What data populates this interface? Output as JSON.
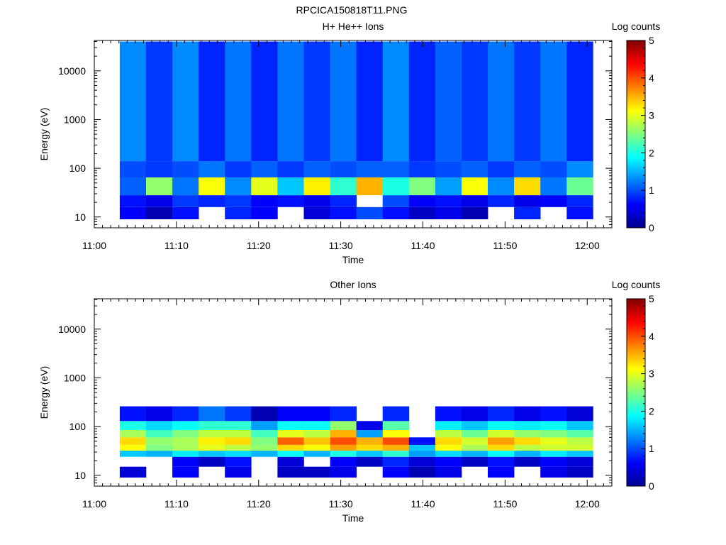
{
  "figure_title": "RPCICA150818T11.PNG",
  "colorscale": [
    "#00008f",
    "#0000ff",
    "#0080ff",
    "#00ffff",
    "#80ff80",
    "#ffff00",
    "#ff8000",
    "#ff0000",
    "#800000"
  ],
  "chart_data": [
    {
      "type": "heatmap",
      "title": "H+ He++ Ions",
      "xlabel": "Time",
      "ylabel": "Energy (eV)",
      "colorbar_label": "Log counts",
      "colorbar_ticks": [
        "0",
        "1",
        "2",
        "3",
        "4",
        "5"
      ],
      "color_range": [
        0,
        5
      ],
      "y_scale": "log",
      "ylim": [
        6,
        42000
      ],
      "y_ticks": [
        10,
        100,
        1000,
        10000
      ],
      "y_tick_labels": [
        "10",
        "100",
        "1000",
        "10000"
      ],
      "x_range_minutes": [
        0,
        63
      ],
      "x_tick_labels": [
        "11:00",
        "11:10",
        "11:20",
        "11:30",
        "11:40",
        "11:50",
        "12:00"
      ],
      "x_tick_minutes": [
        0,
        10,
        20,
        30,
        40,
        50,
        60
      ],
      "columns_start_min": 3.1,
      "column_width_min": 3.2,
      "column_count": 18,
      "bands": [
        {
          "e_range": [
            9,
            16
          ],
          "log_counts": [
            0.6,
            0.2,
            0.7,
            null,
            0.8,
            0.6,
            null,
            0.4,
            0.7,
            1.0,
            0.7,
            0.3,
            0.5,
            0.2,
            null,
            0.8,
            null,
            0.7
          ]
        },
        {
          "e_range": [
            16,
            28
          ],
          "log_counts": [
            0.7,
            0.5,
            0.9,
            0.8,
            0.9,
            0.6,
            0.7,
            0.5,
            0.8,
            null,
            1.0,
            0.6,
            0.7,
            0.5,
            0.8,
            0.5,
            0.6,
            0.8
          ]
        },
        {
          "e_range": [
            28,
            65
          ],
          "log_counts": [
            1.1,
            2.6,
            1.2,
            3.1,
            1.3,
            3.0,
            1.6,
            3.2,
            2.1,
            3.5,
            2.0,
            2.5,
            1.4,
            3.1,
            1.3,
            3.3,
            1.2,
            2.4
          ]
        },
        {
          "e_range": [
            65,
            140
          ],
          "log_counts": [
            1.0,
            0.9,
            1.0,
            1.2,
            0.9,
            1.1,
            0.9,
            1.1,
            1.0,
            1.1,
            1.1,
            0.9,
            1.0,
            1.1,
            0.9,
            1.1,
            1.0,
            1.3
          ]
        },
        {
          "e_range": [
            140,
            40000
          ],
          "log_counts": [
            1.3,
            0.9,
            1.3,
            0.8,
            1.2,
            0.8,
            1.2,
            0.9,
            1.2,
            0.8,
            1.3,
            0.8,
            1.1,
            0.9,
            1.2,
            0.9,
            1.2,
            0.8
          ]
        }
      ]
    },
    {
      "type": "heatmap",
      "title": "Other Ions",
      "xlabel": "Time",
      "ylabel": "Energy (eV)",
      "colorbar_label": "Log counts",
      "colorbar_ticks": [
        "0",
        "1",
        "2",
        "3",
        "4",
        "5"
      ],
      "color_range": [
        0,
        5
      ],
      "y_scale": "log",
      "ylim": [
        6,
        42000
      ],
      "y_ticks": [
        10,
        100,
        1000,
        10000
      ],
      "y_tick_labels": [
        "10",
        "100",
        "1000",
        "10000"
      ],
      "x_range_minutes": [
        0,
        63
      ],
      "x_tick_labels": [
        "11:00",
        "11:10",
        "11:20",
        "11:30",
        "11:40",
        "11:50",
        "12:00"
      ],
      "x_tick_minutes": [
        0,
        10,
        20,
        30,
        40,
        50,
        60
      ],
      "columns_start_min": 3.1,
      "column_width_min": 3.2,
      "column_count": 18,
      "bands": [
        {
          "e_range": [
            9,
            15
          ],
          "log_counts": [
            0.4,
            null,
            0.6,
            null,
            0.5,
            null,
            0.3,
            0.3,
            0.5,
            null,
            0.6,
            0.2,
            0.5,
            null,
            0.6,
            null,
            0.5,
            0.3
          ]
        },
        {
          "e_range": [
            15,
            24
          ],
          "log_counts": [
            null,
            null,
            0.6,
            0.3,
            0.7,
            null,
            0.4,
            null,
            0.6,
            0.3,
            0.8,
            0.4,
            0.6,
            0.3,
            0.7,
            0.3,
            0.6,
            0.4
          ]
        },
        {
          "e_range": [
            24,
            32
          ],
          "log_counts": [
            1.6,
            1.5,
            1.8,
            1.6,
            1.7,
            1.5,
            1.9,
            1.5,
            2.0,
            1.6,
            2.1,
            1.4,
            1.7,
            1.5,
            1.9,
            1.5,
            1.8,
            1.6
          ]
        },
        {
          "e_range": [
            32,
            42
          ],
          "log_counts": [
            3.1,
            2.5,
            2.7,
            3.0,
            2.8,
            2.6,
            3.3,
            3.1,
            3.6,
            3.3,
            3.5,
            1.6,
            3.1,
            2.7,
            3.3,
            2.8,
            2.9,
            2.9
          ]
        },
        {
          "e_range": [
            42,
            60
          ],
          "log_counts": [
            3.3,
            2.6,
            2.7,
            3.2,
            3.3,
            2.5,
            3.9,
            3.4,
            4.0,
            3.5,
            4.0,
            0.7,
            3.3,
            2.9,
            3.6,
            3.3,
            3.0,
            2.8
          ]
        },
        {
          "e_range": [
            60,
            85
          ],
          "log_counts": [
            2.7,
            2.2,
            2.5,
            2.8,
            2.8,
            2.2,
            3.0,
            2.8,
            3.5,
            1.4,
            3.1,
            null,
            2.8,
            2.4,
            2.9,
            2.6,
            2.5,
            2.3
          ]
        },
        {
          "e_range": [
            85,
            130
          ],
          "log_counts": [
            2.0,
            1.7,
            1.9,
            2.1,
            2.1,
            1.4,
            1.9,
            1.9,
            2.6,
            0.5,
            2.3,
            null,
            1.8,
            1.6,
            1.9,
            1.8,
            1.9,
            1.6
          ]
        },
        {
          "e_range": [
            130,
            260
          ],
          "log_counts": [
            0.7,
            0.5,
            0.8,
            1.2,
            0.9,
            0.2,
            0.6,
            0.6,
            0.8,
            null,
            0.8,
            null,
            0.7,
            0.5,
            0.8,
            0.5,
            0.7,
            0.4
          ]
        }
      ]
    }
  ]
}
